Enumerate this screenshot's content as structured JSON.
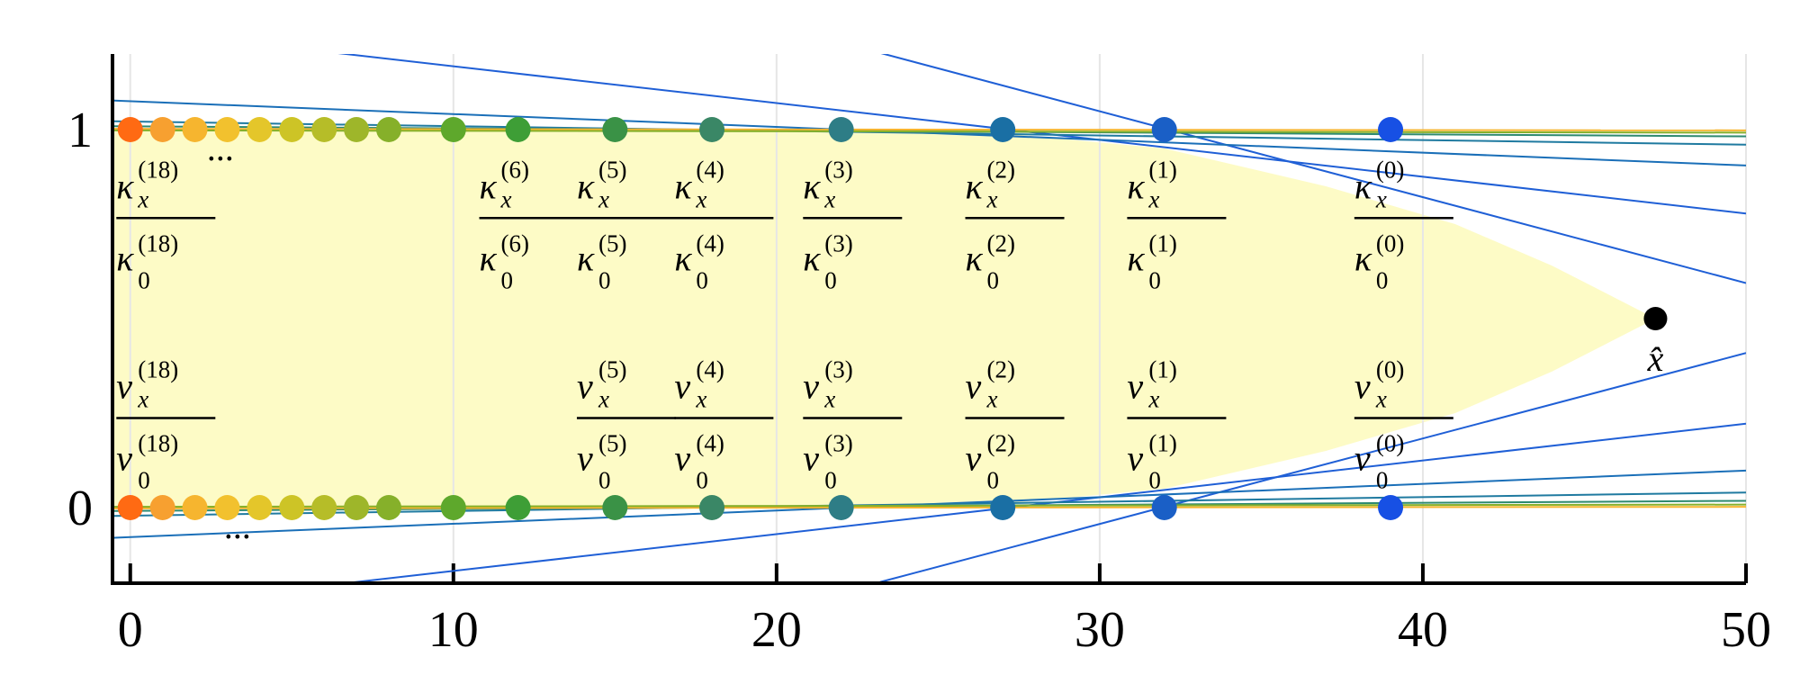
{
  "chart_data": {
    "type": "scatter",
    "xlim": [
      -0.55,
      50
    ],
    "ylim": [
      -0.2,
      1.2
    ],
    "xticks": [
      0,
      10,
      20,
      30,
      40,
      50
    ],
    "yticks": [
      0,
      1
    ],
    "grid": true,
    "x": [
      0,
      1,
      2,
      3,
      4,
      5,
      6,
      7,
      8,
      10,
      12,
      15,
      18,
      22,
      27,
      32,
      39
    ],
    "colors": [
      "#ff6a13",
      "#f7a030",
      "#f6b52f",
      "#f2c12e",
      "#e4c62a",
      "#cdc426",
      "#b6bd28",
      "#9eb62a",
      "#86b02a",
      "#5ea82c",
      "#3e9e36",
      "#3a9246",
      "#3a8766",
      "#2e7d86",
      "#1a6fa4",
      "#1a5fc6",
      "#1750e4"
    ],
    "series": [
      {
        "values": [
          1,
          1,
          1,
          1,
          1,
          1,
          1,
          1,
          1,
          1,
          1,
          1,
          1,
          1,
          1,
          1,
          1
        ]
      },
      {
        "values": [
          0,
          0,
          0,
          0,
          0,
          0,
          0,
          0,
          0,
          0,
          0,
          0,
          0,
          0,
          0,
          0,
          0
        ]
      }
    ],
    "region": {
      "color": "#fdfbc6",
      "x": [
        -0.55,
        22,
        27,
        32,
        37,
        41,
        44,
        47.2,
        44,
        41,
        37,
        32,
        27,
        22,
        -0.55
      ],
      "y": [
        1,
        1,
        0.99,
        0.95,
        0.85,
        0.75,
        0.64,
        0.5,
        0.36,
        0.25,
        0.15,
        0.05,
        0.01,
        0,
        0
      ]
    },
    "lines": [
      {
        "color": "#1f5fd6",
        "x": [
          6.36,
          50
        ],
        "y": [
          1.203,
          0.778
        ]
      },
      {
        "color": "#1f5fd6",
        "x": [
          23.2,
          50
        ],
        "y": [
          1.203,
          0.594
        ]
      },
      {
        "color": "#1a6fb8",
        "x": [
          -0.55,
          50
        ],
        "y": [
          1.077,
          0.905
        ]
      },
      {
        "color": "#1f7aa0",
        "x": [
          -0.55,
          50
        ],
        "y": [
          1.022,
          0.96
        ]
      },
      {
        "color": "#2e8a70",
        "x": [
          -0.55,
          50
        ],
        "y": [
          1.009,
          0.982
        ]
      },
      {
        "color": "#f6b52f",
        "x": [
          -0.55,
          50
        ],
        "y": [
          1.002,
          0.998
        ]
      },
      {
        "color": "#86b02a",
        "x": [
          -0.55,
          50
        ],
        "y": [
          0.998,
          0.992
        ]
      },
      {
        "color": "#1f5fd6",
        "x": [
          6.36,
          50
        ],
        "y": [
          -0.203,
          0.222
        ]
      },
      {
        "color": "#1f5fd6",
        "x": [
          23.2,
          50
        ],
        "y": [
          -0.197,
          0.409
        ]
      },
      {
        "color": "#1a6fb8",
        "x": [
          -0.55,
          50
        ],
        "y": [
          -0.08,
          0.098
        ]
      },
      {
        "color": "#1f7aa0",
        "x": [
          -0.55,
          50
        ],
        "y": [
          -0.022,
          0.04
        ]
      },
      {
        "color": "#2e8a70",
        "x": [
          -0.55,
          50
        ],
        "y": [
          -0.009,
          0.018
        ]
      },
      {
        "color": "#f6b52f",
        "x": [
          -0.55,
          50
        ],
        "y": [
          -0.002,
          0.002
        ]
      },
      {
        "color": "#86b02a",
        "x": [
          -0.55,
          50
        ],
        "y": [
          0.002,
          0.008
        ]
      }
    ],
    "point_marker": {
      "x": 47.2,
      "y": 0.5,
      "color": "#000000"
    },
    "fraction_labels": [
      {
        "x": -0.43,
        "y": 0.766,
        "symbol": "κ",
        "sub_top": "x",
        "sub_bottom": "0",
        "sup": "(18)"
      },
      {
        "x": 10.8,
        "y": 0.766,
        "symbol": "κ",
        "sub_top": "x",
        "sub_bottom": "0",
        "sup": "(6)"
      },
      {
        "x": 13.82,
        "y": 0.766,
        "symbol": "κ",
        "sub_top": "x",
        "sub_bottom": "0",
        "sup": "(5)"
      },
      {
        "x": 16.84,
        "y": 0.766,
        "symbol": "κ",
        "sub_top": "x",
        "sub_bottom": "0",
        "sup": "(4)"
      },
      {
        "x": 20.82,
        "y": 0.766,
        "symbol": "κ",
        "sub_top": "x",
        "sub_bottom": "0",
        "sup": "(3)"
      },
      {
        "x": 25.84,
        "y": 0.766,
        "symbol": "κ",
        "sub_top": "x",
        "sub_bottom": "0",
        "sup": "(2)"
      },
      {
        "x": 30.85,
        "y": 0.766,
        "symbol": "κ",
        "sub_top": "x",
        "sub_bottom": "0",
        "sup": "(1)"
      },
      {
        "x": 37.88,
        "y": 0.766,
        "symbol": "κ",
        "sub_top": "x",
        "sub_bottom": "0",
        "sup": "(0)"
      },
      {
        "x": -0.43,
        "y": 0.237,
        "symbol": "ν",
        "sub_top": "x",
        "sub_bottom": "0",
        "sup": "(18)"
      },
      {
        "x": 13.82,
        "y": 0.237,
        "symbol": "ν",
        "sub_top": "x",
        "sub_bottom": "0",
        "sup": "(5)"
      },
      {
        "x": 16.84,
        "y": 0.237,
        "symbol": "ν",
        "sub_top": "x",
        "sub_bottom": "0",
        "sup": "(4)"
      },
      {
        "x": 20.82,
        "y": 0.237,
        "symbol": "ν",
        "sub_top": "x",
        "sub_bottom": "0",
        "sup": "(3)"
      },
      {
        "x": 25.84,
        "y": 0.237,
        "symbol": "ν",
        "sub_top": "x",
        "sub_bottom": "0",
        "sup": "(2)"
      },
      {
        "x": 30.85,
        "y": 0.237,
        "symbol": "ν",
        "sub_top": "x",
        "sub_bottom": "0",
        "sup": "(1)"
      },
      {
        "x": 37.88,
        "y": 0.237,
        "symbol": "ν",
        "sub_top": "x",
        "sub_bottom": "0",
        "sup": "(0)"
      }
    ],
    "annotations": [
      {
        "x": 2.77,
        "y": 0.92,
        "text": "···"
      },
      {
        "x": 3.3,
        "y": -0.08,
        "text": "···"
      },
      {
        "x": 47.2,
        "y": 0.39,
        "text": "x̂"
      }
    ]
  }
}
